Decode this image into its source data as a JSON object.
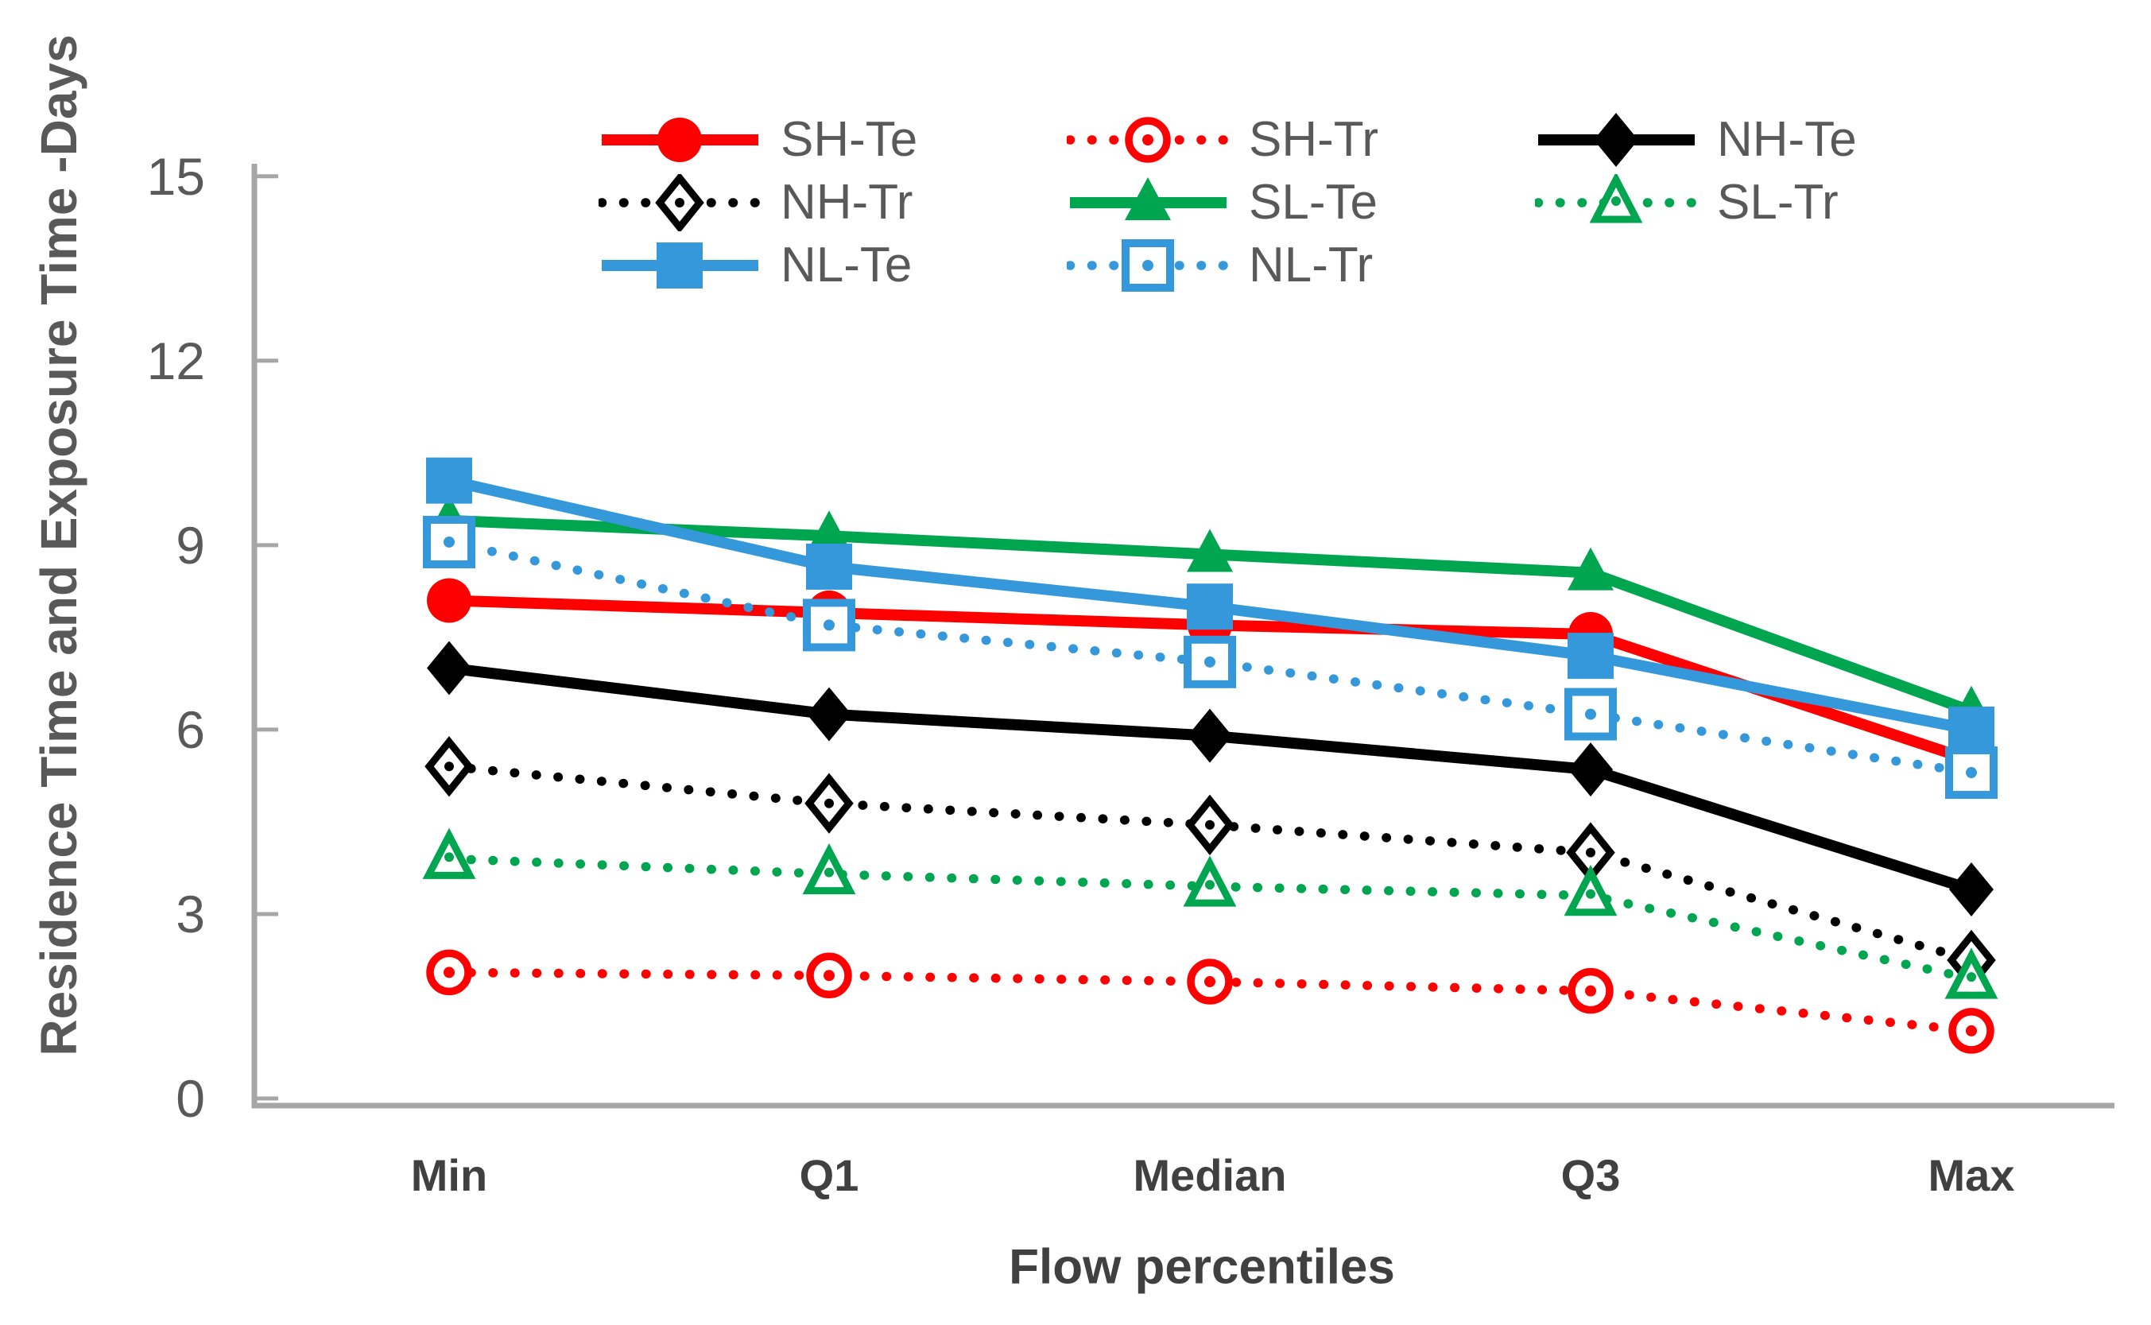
{
  "chart_data": {
    "type": "line",
    "title": "",
    "xlabel": "Flow percentiles",
    "ylabel": "Residence Time and Exposure Time -Days",
    "categories": [
      "Min",
      "Q1",
      "Median",
      "Q3",
      "Max"
    ],
    "y_ticks": [
      15,
      12,
      9,
      6,
      3,
      0
    ],
    "ylim": [
      0,
      15
    ],
    "grid": false,
    "legend_position": "top",
    "legend_rows": [
      [
        "SH-Te",
        "SH-Tr",
        "NH-Te"
      ],
      [
        "NH-Tr",
        "SL-Te",
        "SL-Tr"
      ],
      [
        "NL-Te",
        "NL-Tr"
      ]
    ],
    "series": [
      {
        "name": "SH-Te",
        "color": "#FF0000",
        "line": "solid",
        "marker": "circle",
        "fill": "filled",
        "values": [
          8.1,
          7.9,
          7.7,
          7.55,
          5.5
        ]
      },
      {
        "name": "SH-Tr",
        "color": "#FF0000",
        "line": "dotted",
        "marker": "circle",
        "fill": "open",
        "values": [
          2.05,
          2.0,
          1.9,
          1.75,
          1.1
        ]
      },
      {
        "name": "NH-Te",
        "color": "#000000",
        "line": "solid",
        "marker": "diamond",
        "fill": "filled",
        "values": [
          7.0,
          6.25,
          5.9,
          5.35,
          3.4
        ]
      },
      {
        "name": "NH-Tr",
        "color": "#000000",
        "line": "dotted",
        "marker": "diamond",
        "fill": "open",
        "values": [
          5.4,
          4.8,
          4.45,
          4.0,
          2.25
        ]
      },
      {
        "name": "SL-Te",
        "color": "#00A550",
        "line": "solid",
        "marker": "triangle",
        "fill": "filled",
        "values": [
          9.4,
          9.15,
          8.85,
          8.55,
          6.3
        ]
      },
      {
        "name": "SL-Tr",
        "color": "#00A550",
        "line": "dotted",
        "marker": "triangle",
        "fill": "open",
        "values": [
          3.9,
          3.65,
          3.45,
          3.3,
          1.95
        ]
      },
      {
        "name": "NL-Te",
        "color": "#3598DB",
        "line": "solid",
        "marker": "square",
        "fill": "filled",
        "values": [
          10.05,
          8.65,
          8.0,
          7.2,
          6.0
        ]
      },
      {
        "name": "NL-Tr",
        "color": "#3598DB",
        "line": "dotted",
        "marker": "square",
        "fill": "open",
        "values": [
          9.05,
          7.7,
          7.1,
          6.25,
          5.3
        ]
      }
    ]
  },
  "style_colors": {
    "axis_line": "#A6A6A6",
    "tick_text": "#595959",
    "category_text": "#404040",
    "legend_text": "#595959",
    "axis_title_text": "#595959",
    "x_title_text": "#404040",
    "background": "#FFFFFF"
  }
}
